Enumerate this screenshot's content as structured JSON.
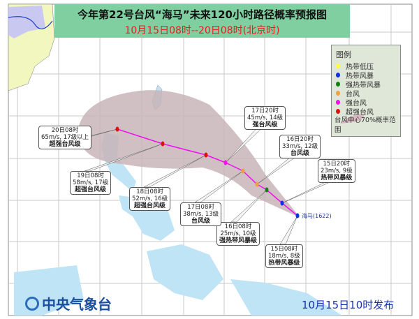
{
  "title": "今年第22号台风“海马”未来120小时路径概率预报图",
  "subtitle": "10月15日08时--20日08时(北京时)",
  "typhoon_label": "海马",
  "typhoon_id": "(1622)",
  "legend": {
    "heading": "图例",
    "items": [
      {
        "label": "热带低压",
        "color": "#ffff40"
      },
      {
        "label": "热带风暴",
        "color": "#1030e0"
      },
      {
        "label": "强热带风暴",
        "color": "#108010"
      },
      {
        "label": "台风",
        "color": "#f0a040"
      },
      {
        "label": "强台风",
        "color": "#f010f0"
      },
      {
        "label": "超强台风",
        "color": "#e01010"
      }
    ],
    "cone_label": "台风中心70%概率范围"
  },
  "forecast_points": [
    {
      "time": "15日08时",
      "wind": "18m/s, 8级",
      "level": "热带风暴级",
      "color": "#1030e0"
    },
    {
      "time": "15日20时",
      "wind": "23m/s, 9级",
      "level": "热带风暴级",
      "color": "#1030e0"
    },
    {
      "time": "16日08时",
      "wind": "25m/s, 10级",
      "level": "强热带风暴级",
      "color": "#108010"
    },
    {
      "time": "16日20时",
      "wind": "33m/s, 12级",
      "level": "台风级",
      "color": "#f0a040"
    },
    {
      "time": "17日08时",
      "wind": "38m/s, 13级",
      "level": "台风级",
      "color": "#f0a040"
    },
    {
      "time": "17日20时",
      "wind": "45m/s, 14级",
      "level": "强台风级",
      "color": "#f010f0"
    },
    {
      "time": "18日08时",
      "wind": "52m/s, 16级",
      "level": "超强台风级",
      "color": "#e01010"
    },
    {
      "time": "19日08时",
      "wind": "58m/s, 17级",
      "level": "超强台风级",
      "color": "#e01010"
    },
    {
      "time": "20日08时",
      "wind": "65m/s, 17级以上",
      "level": "超强台风级",
      "color": "#e01010"
    }
  ],
  "footer": {
    "agency": "中央气象台",
    "published": "10月15日10时发布"
  },
  "colors": {
    "track": "#f010f0",
    "cone": "#c8b4b8",
    "sea": "#ffffff",
    "land_water": "#bfe4f5",
    "title_bg": "#7fcfa0"
  }
}
